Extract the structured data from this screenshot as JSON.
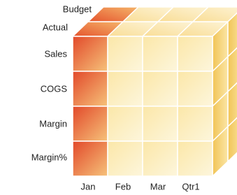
{
  "layer_labels": [
    "Budget",
    "Actual"
  ],
  "row_labels": [
    "Sales",
    "COGS",
    "Margin",
    "Margin%"
  ],
  "column_labels": [
    "Jan",
    "Feb",
    "Mar",
    "Qtr1"
  ]
}
